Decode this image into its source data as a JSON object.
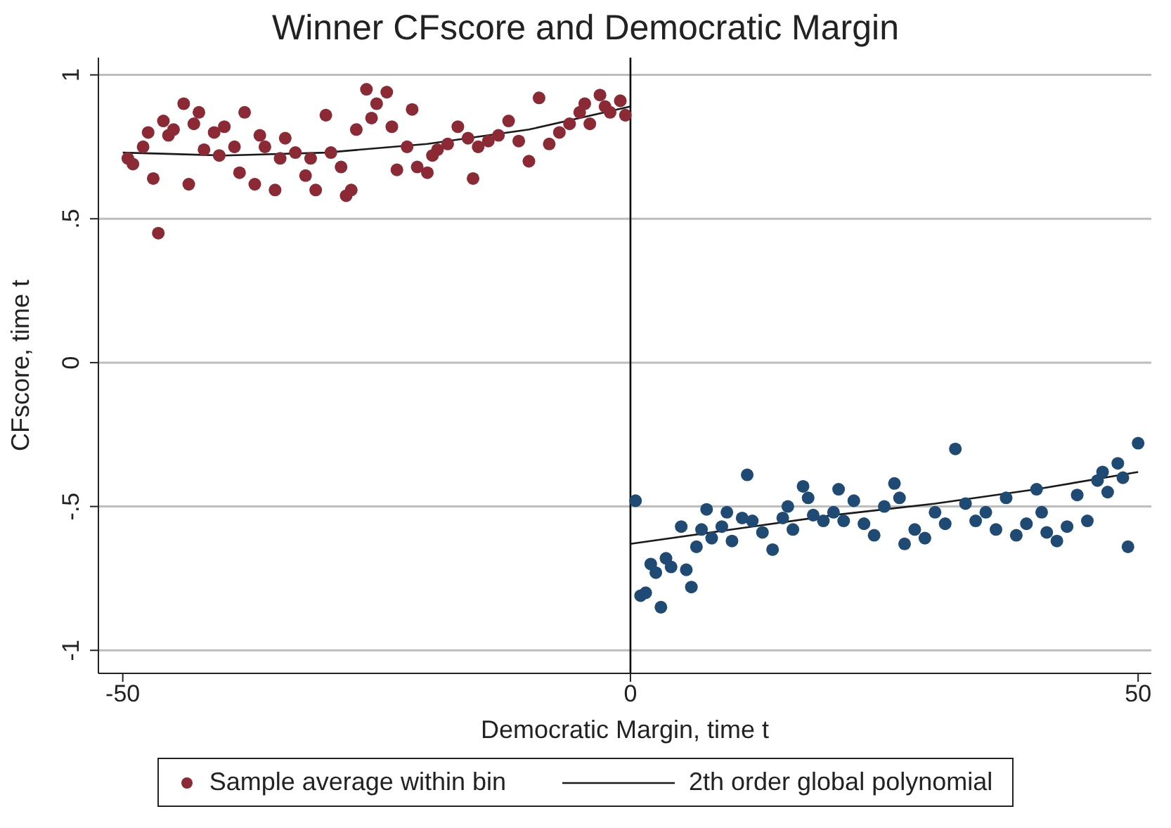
{
  "chart_data": {
    "type": "scatter",
    "title": "Winner CFscore and Democratic Margin",
    "xlabel": "Democratic Margin, time t",
    "ylabel": "CFscore, time t",
    "xlim": [
      -52.4,
      51.3
    ],
    "ylim": [
      -1.08,
      1.06
    ],
    "xticks": [
      -50,
      0,
      50
    ],
    "yticks": [
      -1,
      {
        "value": -0.5,
        "label": "-.5"
      },
      0,
      {
        "value": 0.5,
        "label": ".5"
      },
      1
    ],
    "grid": "y",
    "legend": "bottom",
    "marker": "circle",
    "ref_lines": [
      {
        "axis": "x",
        "value": 0,
        "color": "#000000"
      }
    ],
    "series": [
      {
        "name": "Sample average within bin",
        "x": [
          -49.5,
          -49,
          -48,
          -47.5,
          -47,
          -46.5,
          -46,
          -45.5,
          -45,
          -44,
          -43.5,
          -43,
          -42.5,
          -42,
          -41,
          -40.5,
          -40,
          -39,
          -38.5,
          -38,
          -37,
          -36.5,
          -36,
          -35,
          -34.5,
          -34,
          -33,
          -32,
          -31.5,
          -31,
          -30,
          -29.5,
          -28.5,
          -28,
          -27.5,
          -27,
          -26,
          -25.5,
          -25,
          -24,
          -23.5,
          -23,
          -22,
          -21.5,
          -21,
          -20,
          -19.5,
          -19,
          -18,
          -17,
          -16,
          -15.5,
          -15,
          -14,
          -13,
          -12,
          -11,
          -10,
          -9,
          -8,
          -7,
          -6,
          -5,
          -4.5,
          -4,
          -3,
          -2.5,
          -2,
          -1,
          -0.5,
          0.5,
          1,
          1.5,
          2,
          2.5,
          3,
          3.5,
          4,
          5,
          5.5,
          6,
          6.5,
          7,
          7.5,
          8,
          9,
          9.5,
          10,
          11,
          11.5,
          12,
          13,
          14,
          15,
          15.5,
          16,
          17,
          17.5,
          18,
          19,
          20,
          20.5,
          21,
          22,
          23,
          24,
          25,
          26,
          26.5,
          27,
          28,
          29,
          30,
          31,
          32,
          33,
          34,
          35,
          36,
          37,
          38,
          39,
          40,
          40.5,
          41,
          42,
          43,
          44,
          45,
          46,
          46.5,
          47,
          48,
          48.5,
          49,
          50
        ],
        "values": [
          0.71,
          0.69,
          0.75,
          0.8,
          0.64,
          0.45,
          0.84,
          0.79,
          0.81,
          0.9,
          0.62,
          0.83,
          0.87,
          0.74,
          0.8,
          0.72,
          0.82,
          0.75,
          0.66,
          0.87,
          0.62,
          0.79,
          0.75,
          0.6,
          0.71,
          0.78,
          0.73,
          0.65,
          0.71,
          0.6,
          0.86,
          0.73,
          0.68,
          0.58,
          0.6,
          0.81,
          0.95,
          0.85,
          0.9,
          0.94,
          0.82,
          0.67,
          0.75,
          0.88,
          0.68,
          0.66,
          0.72,
          0.74,
          0.76,
          0.82,
          0.78,
          0.64,
          0.75,
          0.77,
          0.79,
          0.84,
          0.77,
          0.7,
          0.92,
          0.76,
          0.8,
          0.83,
          0.87,
          0.9,
          0.83,
          0.93,
          0.89,
          0.87,
          0.91,
          0.86,
          -0.48,
          -0.81,
          -0.8,
          -0.7,
          -0.73,
          -0.85,
          -0.68,
          -0.71,
          -0.57,
          -0.72,
          -0.78,
          -0.64,
          -0.58,
          -0.51,
          -0.61,
          -0.57,
          -0.52,
          -0.62,
          -0.54,
          -0.39,
          -0.55,
          -0.59,
          -0.65,
          -0.54,
          -0.5,
          -0.58,
          -0.43,
          -0.47,
          -0.53,
          -0.55,
          -0.52,
          -0.44,
          -0.55,
          -0.48,
          -0.56,
          -0.6,
          -0.5,
          -0.42,
          -0.47,
          -0.63,
          -0.58,
          -0.61,
          -0.52,
          -0.56,
          -0.3,
          -0.49,
          -0.55,
          -0.52,
          -0.58,
          -0.47,
          -0.6,
          -0.56,
          -0.44,
          -0.52,
          -0.59,
          -0.62,
          -0.57,
          -0.46,
          -0.55,
          -0.41,
          -0.38,
          -0.45,
          -0.35,
          -0.4,
          -0.64,
          -0.28
        ],
        "colors": [
          "#8b2a35",
          "#8b2a35",
          "#8b2a35",
          "#8b2a35",
          "#8b2a35",
          "#8b2a35",
          "#8b2a35",
          "#8b2a35",
          "#8b2a35",
          "#8b2a35",
          "#8b2a35",
          "#8b2a35",
          "#8b2a35",
          "#8b2a35",
          "#8b2a35",
          "#8b2a35",
          "#8b2a35",
          "#8b2a35",
          "#8b2a35",
          "#8b2a35",
          "#8b2a35",
          "#8b2a35",
          "#8b2a35",
          "#8b2a35",
          "#8b2a35",
          "#8b2a35",
          "#8b2a35",
          "#8b2a35",
          "#8b2a35",
          "#8b2a35",
          "#8b2a35",
          "#8b2a35",
          "#8b2a35",
          "#8b2a35",
          "#8b2a35",
          "#8b2a35",
          "#8b2a35",
          "#8b2a35",
          "#8b2a35",
          "#8b2a35",
          "#8b2a35",
          "#8b2a35",
          "#8b2a35",
          "#8b2a35",
          "#8b2a35",
          "#8b2a35",
          "#8b2a35",
          "#8b2a35",
          "#8b2a35",
          "#8b2a35",
          "#8b2a35",
          "#8b2a35",
          "#8b2a35",
          "#8b2a35",
          "#8b2a35",
          "#8b2a35",
          "#8b2a35",
          "#8b2a35",
          "#8b2a35",
          "#8b2a35",
          "#8b2a35",
          "#8b2a35",
          "#8b2a35",
          "#8b2a35",
          "#8b2a35",
          "#8b2a35",
          "#8b2a35",
          "#8b2a35",
          "#8b2a35",
          "#8b2a35",
          "#1f4a73",
          "#1f4a73",
          "#1f4a73",
          "#1f4a73",
          "#1f4a73",
          "#1f4a73",
          "#1f4a73",
          "#1f4a73",
          "#1f4a73",
          "#1f4a73",
          "#1f4a73",
          "#1f4a73",
          "#1f4a73",
          "#1f4a73",
          "#1f4a73",
          "#1f4a73",
          "#1f4a73",
          "#1f4a73",
          "#1f4a73",
          "#1f4a73",
          "#1f4a73",
          "#1f4a73",
          "#1f4a73",
          "#1f4a73",
          "#1f4a73",
          "#1f4a73",
          "#1f4a73",
          "#1f4a73",
          "#1f4a73",
          "#1f4a73",
          "#1f4a73",
          "#1f4a73",
          "#1f4a73",
          "#1f4a73",
          "#1f4a73",
          "#1f4a73",
          "#1f4a73",
          "#1f4a73",
          "#1f4a73",
          "#1f4a73",
          "#1f4a73",
          "#1f4a73",
          "#1f4a73",
          "#1f4a73",
          "#1f4a73",
          "#1f4a73",
          "#1f4a73",
          "#1f4a73",
          "#1f4a73",
          "#1f4a73",
          "#1f4a73",
          "#1f4a73",
          "#1f4a73",
          "#1f4a73",
          "#1f4a73",
          "#1f4a73",
          "#1f4a73",
          "#1f4a73",
          "#1f4a73",
          "#1f4a73",
          "#1f4a73",
          "#1f4a73",
          "#1f4a73",
          "#1f4a73",
          "#1f4a73",
          "#1f4a73"
        ]
      },
      {
        "type": "line",
        "name": "2th order global polynomial",
        "color": "#1a1a1a",
        "marker": "none",
        "x": [
          -50,
          -40,
          -30,
          -20,
          -10,
          0
        ],
        "values": [
          0.73,
          0.72,
          0.73,
          0.76,
          0.81,
          0.89
        ]
      },
      {
        "type": "line",
        "color": "#1a1a1a",
        "marker": "none",
        "x": [
          0,
          10,
          20,
          30,
          40,
          50
        ],
        "values": [
          -0.63,
          -0.58,
          -0.53,
          -0.49,
          -0.44,
          -0.38
        ]
      }
    ]
  }
}
